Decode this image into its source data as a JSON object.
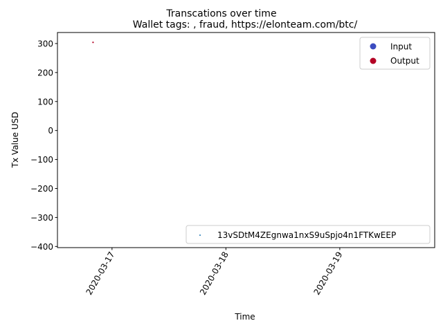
{
  "chart_data": {
    "type": "scatter",
    "suptitle": "Transcations over time",
    "title": "Wallet tags: , fraud, https://elonteam.com/btc/",
    "xlabel": "Time",
    "ylabel": "Tx Value USD",
    "x_ticks": [
      "2020-03-17",
      "2020-03-18",
      "2020-03-19"
    ],
    "x_range": [
      "2020-03-16 12:30",
      "2020-03-19 20:00"
    ],
    "y_ticks": [
      300,
      200,
      100,
      0,
      -100,
      -200,
      -300,
      -400
    ],
    "y_range": [
      -404,
      338
    ],
    "grid": false,
    "points": [
      {
        "x": "2020-03-16 20:00",
        "y": 304,
        "kind": "Output"
      }
    ],
    "legend_kinds": {
      "placement": "top-right",
      "entries": [
        {
          "label": "Input",
          "color": "#3b4cc0"
        },
        {
          "label": "Output",
          "color": "#b40426"
        }
      ]
    },
    "legend_wallet": {
      "placement": "bottom-right",
      "entries": [
        {
          "label": "13vSDtM4ZEgnwa1nxS9uSpjo4n1FTKwEEP",
          "color": "#1f77b4"
        }
      ]
    }
  }
}
